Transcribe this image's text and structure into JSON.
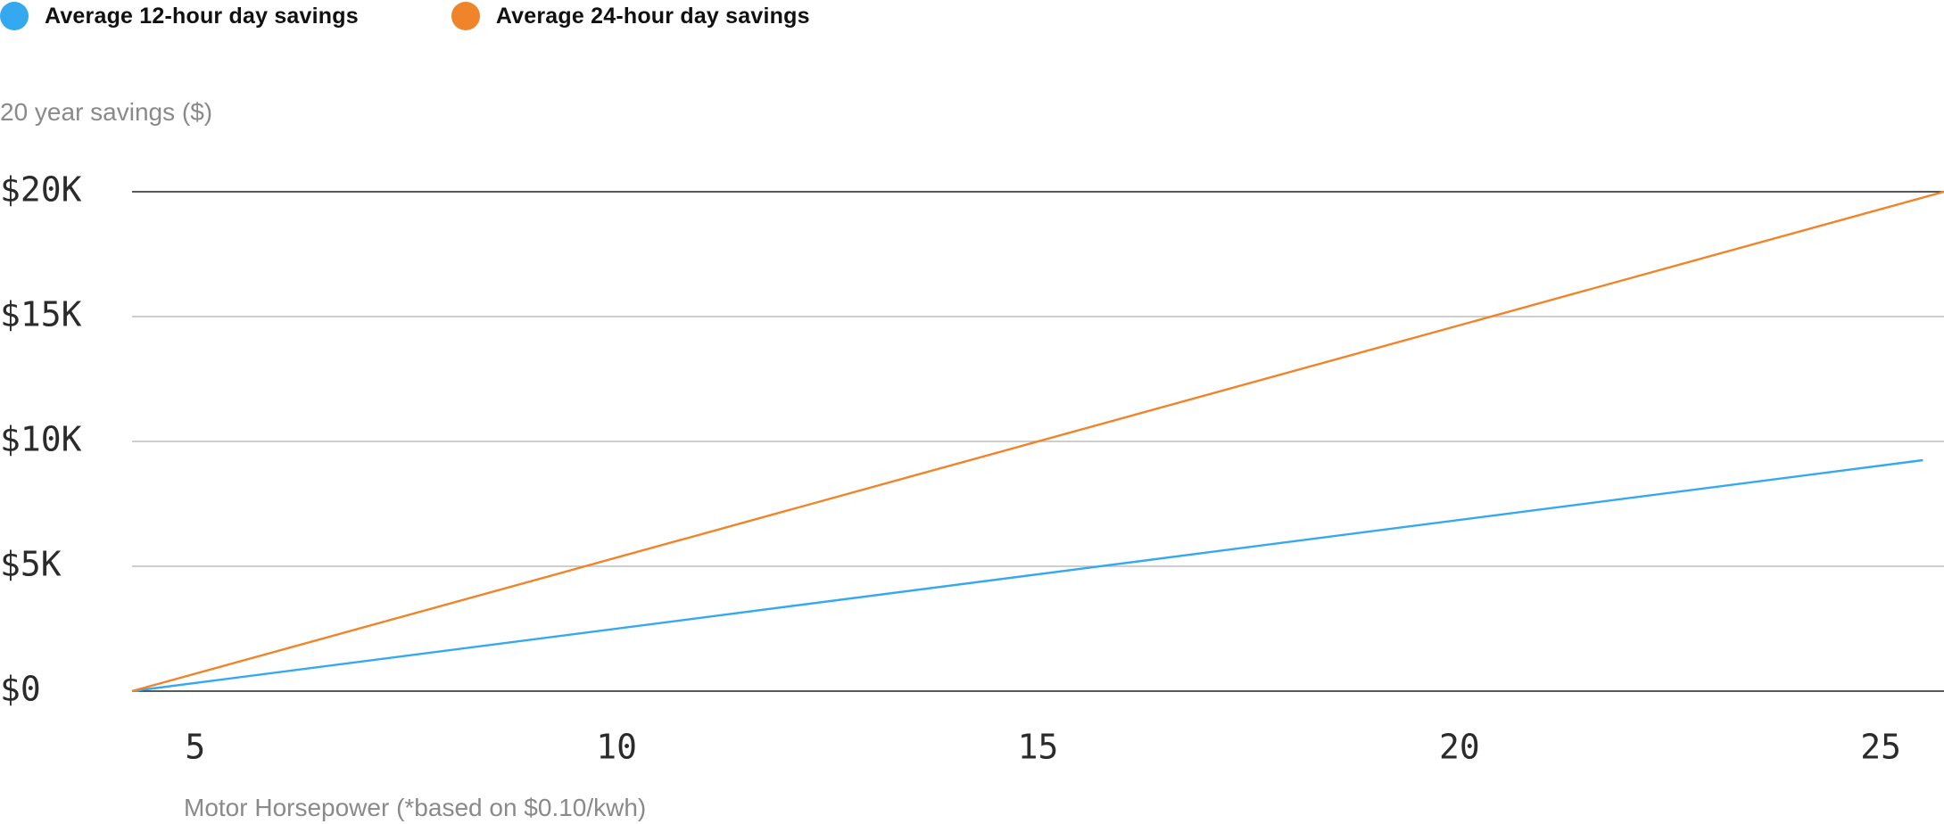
{
  "chart_data": {
    "type": "line",
    "title": "",
    "xlabel": "Motor Horsepower (*based on $0.10/kwh)",
    "ylabel": "20 year savings ($)",
    "xlim": [
      4.25,
      25.75
    ],
    "ylim": [
      0,
      20000
    ],
    "x_ticks": [
      5,
      10,
      15,
      20,
      25
    ],
    "x_tick_labels": [
      "5",
      "10",
      "15",
      "20",
      "25"
    ],
    "y_ticks": [
      0,
      5000,
      10000,
      15000,
      20000
    ],
    "y_tick_labels": [
      "$0",
      "$5K",
      "$10K",
      "$15K",
      "$20K"
    ],
    "grid": true,
    "legend_position": "top-left",
    "series": [
      {
        "name": "Average 12-hour day savings",
        "color": "#35a9ef",
        "x": [
          4.25,
          25.5
        ],
        "y": [
          0,
          9250
        ]
      },
      {
        "name": "Average 24-hour day savings",
        "color": "#f0842a",
        "x": [
          4.25,
          25.75
        ],
        "y": [
          0,
          20000
        ]
      }
    ]
  }
}
